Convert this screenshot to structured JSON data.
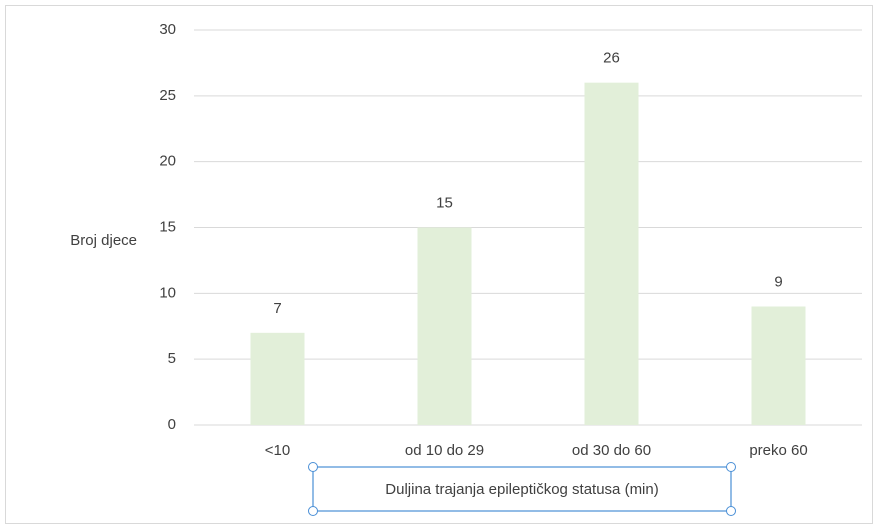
{
  "chart_data": {
    "type": "bar",
    "y_label": "Broj djece",
    "x_label": "Duljina trajanja epileptičkog statusa (min)",
    "categories": [
      "<10",
      "od 10 do 29",
      "od 30 do 60",
      "preko 60"
    ],
    "values": [
      7,
      15,
      26,
      9
    ],
    "color": "#e2efd9",
    "ylim": [
      0,
      30
    ],
    "yticks": [
      0,
      5,
      10,
      15,
      20,
      25,
      30
    ],
    "grid": true
  }
}
